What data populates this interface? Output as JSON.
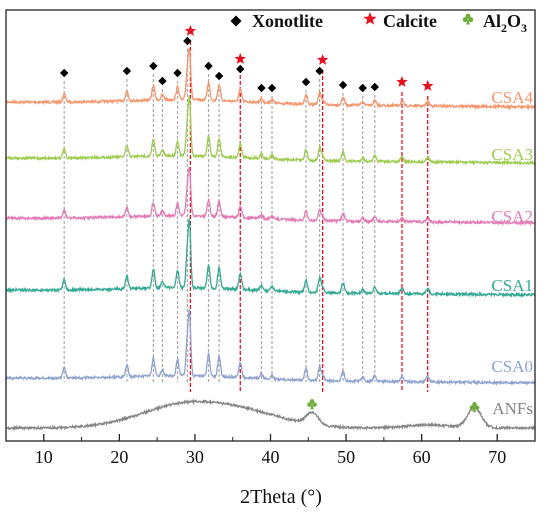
{
  "chart_data": {
    "type": "line",
    "title": "",
    "xlabel": "2Theta (°)",
    "ylabel": "",
    "xlim": [
      5,
      75
    ],
    "x_ticks": [
      10,
      20,
      30,
      40,
      50,
      60,
      70
    ],
    "legend": {
      "placement": "top",
      "entries": [
        {
          "label": "Xonotlite",
          "marker": "diamond",
          "color": "#000000"
        },
        {
          "label": "Calcite",
          "marker": "star",
          "color": "#e8101e"
        },
        {
          "label": "Al",
          "sub": "2",
          "label2": "O",
          "sub2": "3",
          "marker": "club",
          "color": "#6dae3b"
        }
      ]
    },
    "series": [
      {
        "name": "CSA4",
        "color": "#f5956b"
      },
      {
        "name": "CSA3",
        "color": "#9dcc4e"
      },
      {
        "name": "CSA2",
        "color": "#e27bb5"
      },
      {
        "name": "CSA1",
        "color": "#34a993"
      },
      {
        "name": "CSA0",
        "color": "#8ea3cf"
      },
      {
        "name": "ANFs",
        "color": "#858585"
      }
    ],
    "xonotlite_peaks": [
      12.7,
      21.0,
      24.5,
      25.7,
      27.7,
      29.0,
      31.8,
      33.2,
      36.0,
      38.8,
      40.2,
      44.7,
      46.5,
      49.6,
      52.2,
      53.8
    ],
    "calcite_peaks": [
      29.4,
      36.0,
      46.9,
      57.4,
      60.8
    ],
    "al2o3_peaks": [
      45.5,
      67.0
    ]
  }
}
